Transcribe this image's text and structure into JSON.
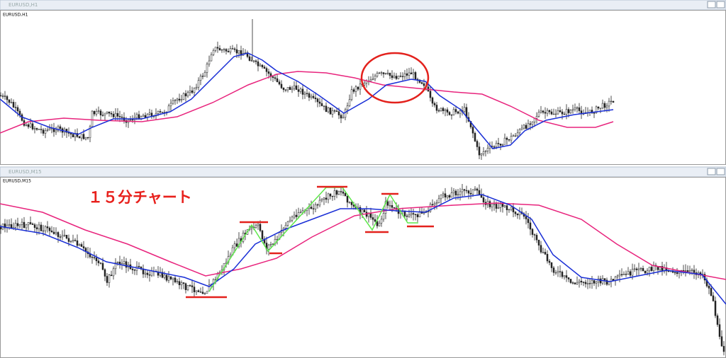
{
  "windows": [
    {
      "title": "EURUSD,H1",
      "label": "EURUSD,H1"
    },
    {
      "title": "EURUSD,M15",
      "label": "EURUSD,M15",
      "annotation": "１５分チャート"
    }
  ]
}
